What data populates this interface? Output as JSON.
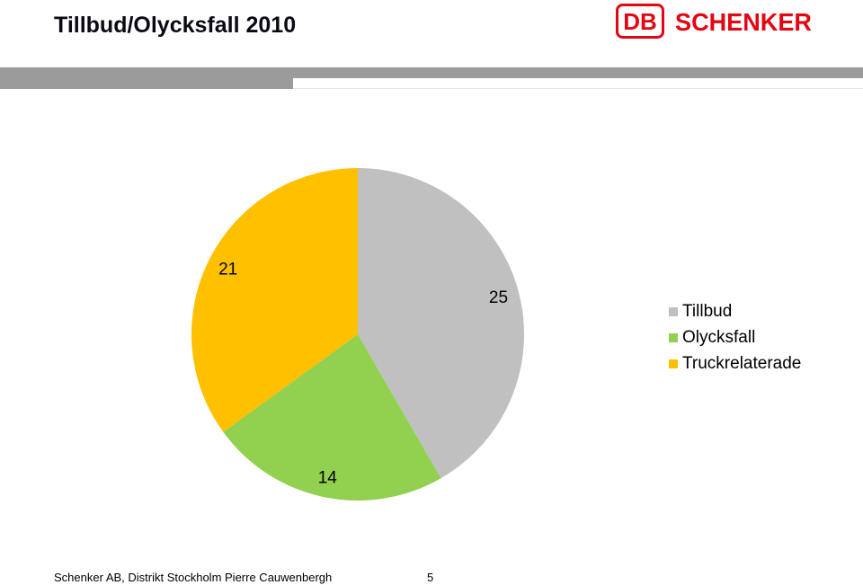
{
  "title": "Tillbud/Olycksfall 2010",
  "logo": {
    "left_text": "DB",
    "right_text": "SCHENKER",
    "color": "#e30613"
  },
  "footer": {
    "text": "Schenker AB, Distrikt Stockholm Pierre Cauwenbergh",
    "page": "5"
  },
  "chart_data": {
    "type": "pie",
    "title": "",
    "slices": [
      {
        "label": "Tillbud",
        "value": 25,
        "color": "#c0c0c0"
      },
      {
        "label": "Olycksfall",
        "value": 14,
        "color": "#92d050"
      },
      {
        "label": "Truckrelaterade",
        "value": 21,
        "color": "#ffc000"
      }
    ],
    "start_angle": "12 o'clock",
    "direction": "clockwise",
    "data_labels": "outside",
    "legend": "right"
  }
}
